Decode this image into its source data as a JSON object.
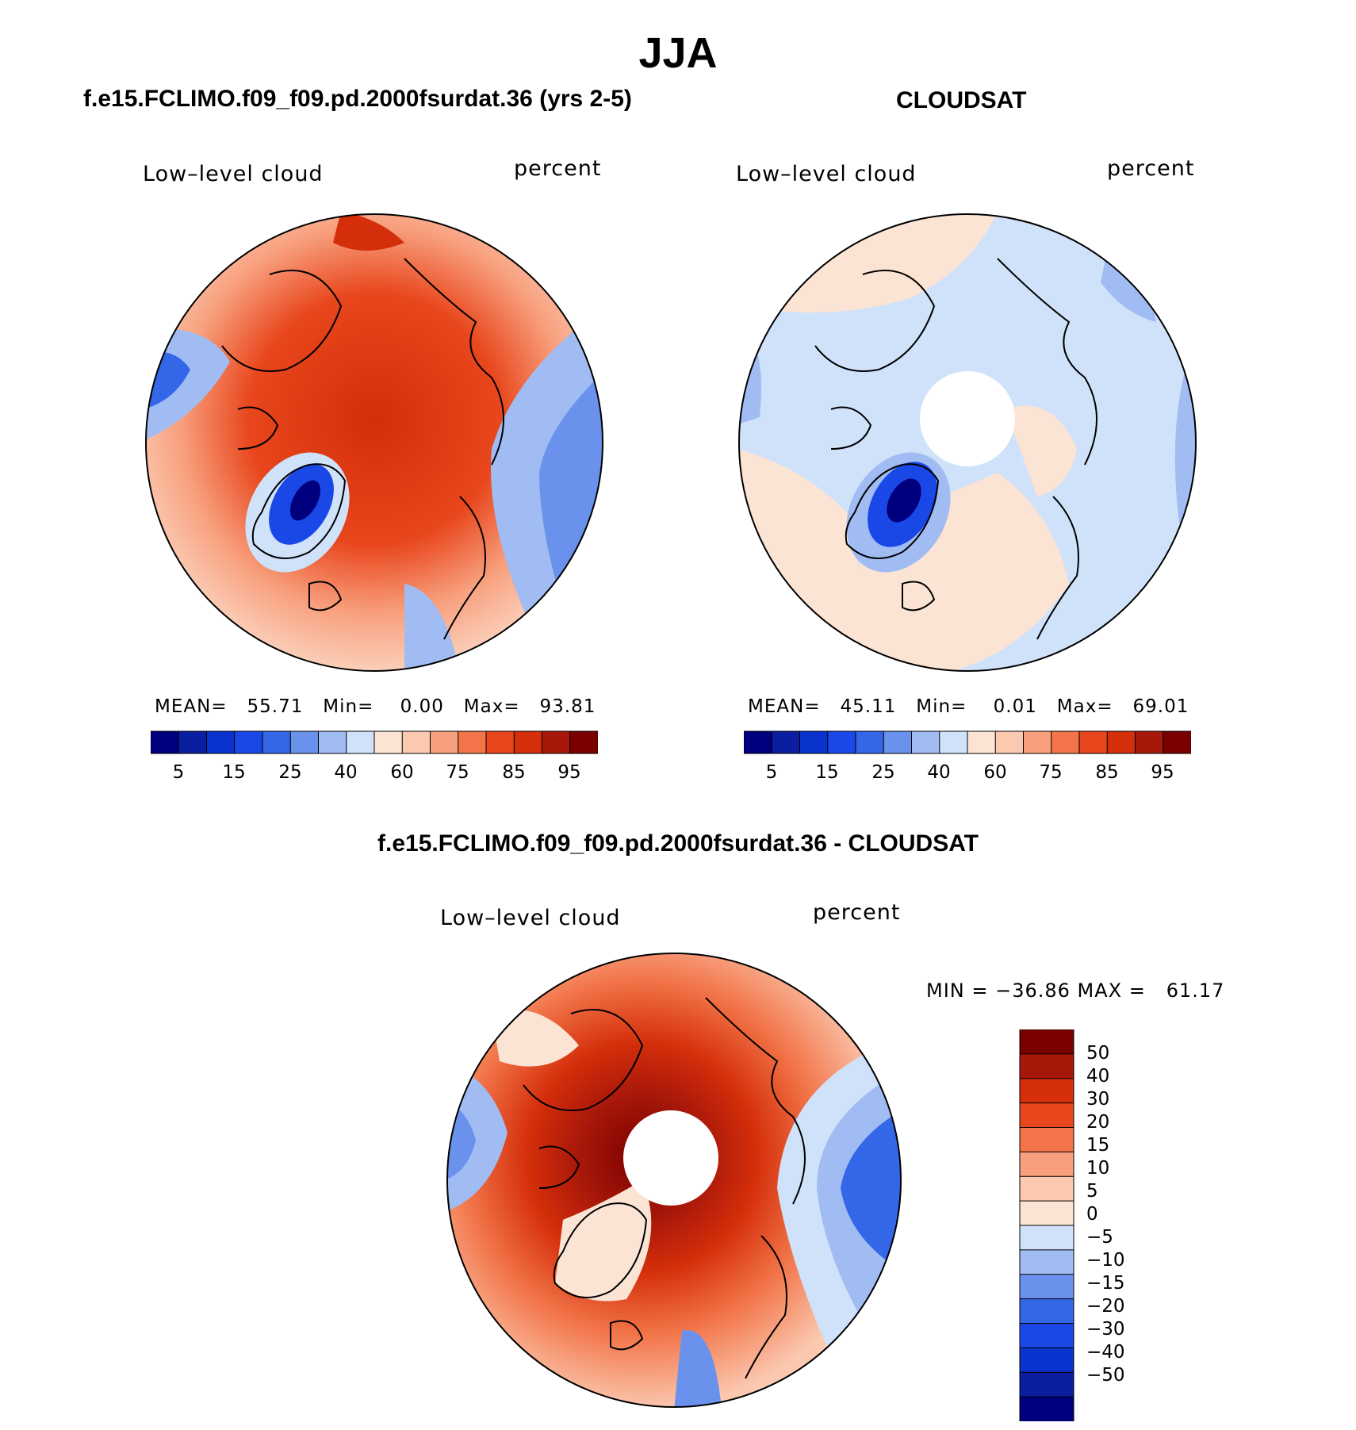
{
  "season_title": "JJA",
  "panels": [
    {
      "heading": "f.e15.FCLIMO.f09_f09.pd.2000fsurdat.36 (yrs 2-5)",
      "variable": "Low–level cloud",
      "units": "percent",
      "stats": "MEAN=   55.71   Min=    0.00   Max=   93.81",
      "colorbar_ticks": [
        "5",
        "15",
        "25",
        "40",
        "60",
        "75",
        "85",
        "95"
      ],
      "map_icon": "polar-stereographic-map"
    },
    {
      "heading": "CLOUDSAT",
      "variable": "Low–level cloud",
      "units": "percent",
      "stats": "MEAN=   45.11   Min=    0.01   Max=   69.01",
      "colorbar_ticks": [
        "5",
        "15",
        "25",
        "40",
        "60",
        "75",
        "85",
        "95"
      ],
      "map_icon": "polar-stereographic-map"
    }
  ],
  "diff_panel": {
    "heading": "f.e15.FCLIMO.f09_f09.pd.2000fsurdat.36 - CLOUDSAT",
    "variable": "Low–level cloud",
    "units": "percent",
    "stats": "MIN = −36.86 MAX =   61.17",
    "colorbar_ticks": [
      "50",
      "40",
      "30",
      "20",
      "15",
      "10",
      "5",
      "0",
      "−5",
      "−10",
      "−15",
      "−20",
      "−30",
      "−40",
      "−50"
    ],
    "map_icon": "polar-stereographic-map"
  },
  "colors": {
    "abs_palette": [
      "#00007f",
      "#0a1ea0",
      "#0a32cc",
      "#1a48e6",
      "#3466e8",
      "#6a92ec",
      "#a0bcf2",
      "#d0e2fa",
      "#fce4d4",
      "#fbc8b0",
      "#f8a07e",
      "#f27448",
      "#e8461c",
      "#d42e0a",
      "#a8180a",
      "#7a0000"
    ],
    "diff_palette": [
      "#00007f",
      "#0a1ea0",
      "#0a32cc",
      "#1a48e6",
      "#3466e8",
      "#6a92ec",
      "#a0bcf2",
      "#d0e2fa",
      "#fce4d4",
      "#fbc8b0",
      "#f8a07e",
      "#f27448",
      "#e8461c",
      "#d42e0a",
      "#a8180a",
      "#7a0000"
    ]
  }
}
